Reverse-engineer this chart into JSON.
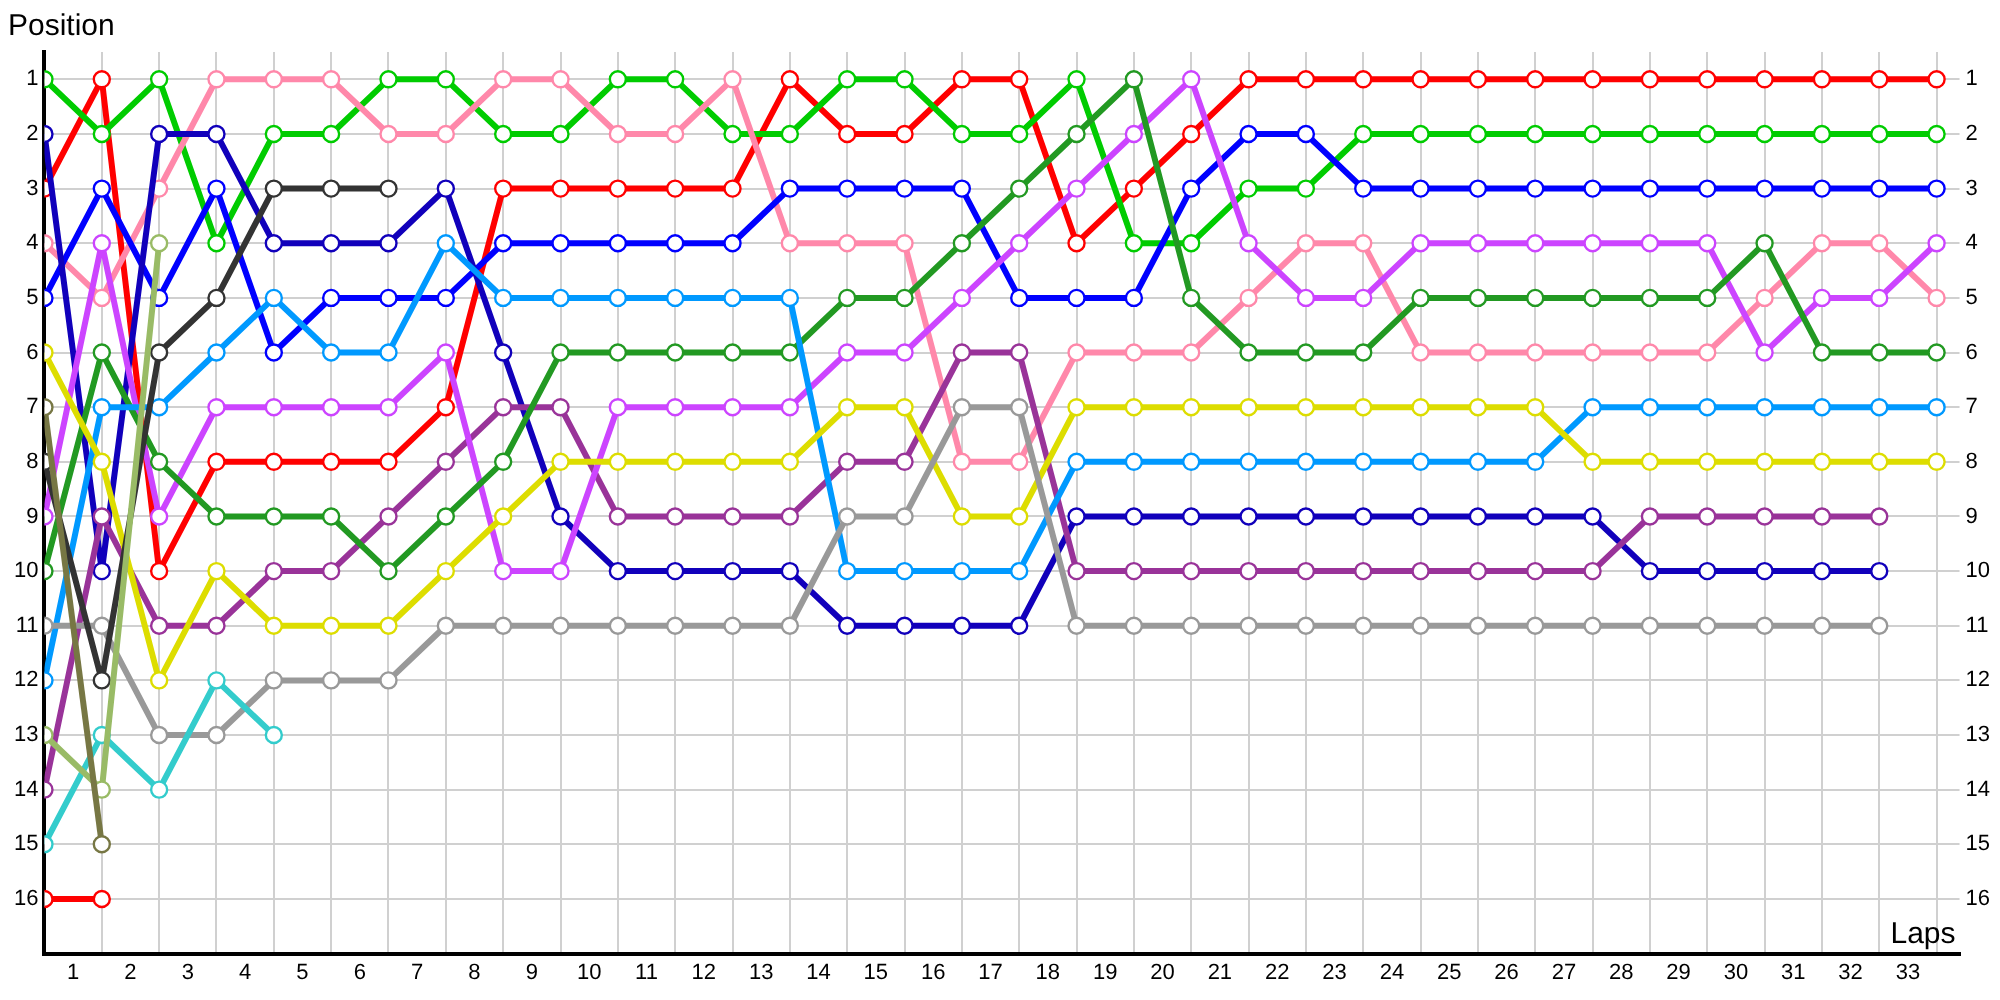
{
  "chart_data": {
    "type": "line",
    "xlabel": "Laps",
    "ylabel": "Position",
    "x": [
      0,
      1,
      2,
      3,
      4,
      5,
      6,
      7,
      8,
      9,
      10,
      11,
      12,
      13,
      14,
      15,
      16,
      17,
      18,
      19,
      20,
      21,
      22,
      23,
      24,
      25,
      26,
      27,
      28,
      29,
      30,
      31,
      32,
      33
    ],
    "xlim": [
      0,
      33.4
    ],
    "xticks": [
      {
        "value": 0,
        "label": null
      },
      {
        "value": 0.5,
        "label": "1"
      },
      {
        "value": 1,
        "label": null
      },
      {
        "value": 1.5,
        "label": "2"
      },
      {
        "value": 2,
        "label": null
      },
      {
        "value": 2.5,
        "label": "3"
      },
      {
        "value": 3,
        "label": null
      },
      {
        "value": 3.5,
        "label": "4"
      },
      {
        "value": 4,
        "label": null
      },
      {
        "value": 4.5,
        "label": "5"
      },
      {
        "value": 5,
        "label": null
      },
      {
        "value": 5.5,
        "label": "6"
      },
      {
        "value": 6,
        "label": null
      },
      {
        "value": 6.5,
        "label": "7"
      },
      {
        "value": 7,
        "label": null
      },
      {
        "value": 7.5,
        "label": "8"
      },
      {
        "value": 8,
        "label": null
      },
      {
        "value": 8.5,
        "label": "9"
      },
      {
        "value": 9,
        "label": null
      },
      {
        "value": 9.5,
        "label": "10"
      },
      {
        "value": 10,
        "label": null
      },
      {
        "value": 10.5,
        "label": "11"
      },
      {
        "value": 11,
        "label": null
      },
      {
        "value": 11.5,
        "label": "12"
      },
      {
        "value": 12,
        "label": null
      },
      {
        "value": 12.5,
        "label": "13"
      },
      {
        "value": 13,
        "label": null
      },
      {
        "value": 13.5,
        "label": "14"
      },
      {
        "value": 14,
        "label": null
      },
      {
        "value": 14.5,
        "label": "15"
      },
      {
        "value": 15,
        "label": null
      },
      {
        "value": 15.5,
        "label": "16"
      },
      {
        "value": 16,
        "label": null
      },
      {
        "value": 16.5,
        "label": "17"
      },
      {
        "value": 17,
        "label": null
      },
      {
        "value": 17.5,
        "label": "18"
      },
      {
        "value": 18,
        "label": null
      },
      {
        "value": 18.5,
        "label": "19"
      },
      {
        "value": 19,
        "label": null
      },
      {
        "value": 19.5,
        "label": "20"
      },
      {
        "value": 20,
        "label": null
      },
      {
        "value": 20.5,
        "label": "21"
      },
      {
        "value": 21,
        "label": null
      },
      {
        "value": 21.5,
        "label": "22"
      },
      {
        "value": 22,
        "label": null
      },
      {
        "value": 22.5,
        "label": "23"
      },
      {
        "value": 23,
        "label": null
      },
      {
        "value": 23.5,
        "label": "24"
      },
      {
        "value": 24,
        "label": null
      },
      {
        "value": 24.5,
        "label": "25"
      },
      {
        "value": 25,
        "label": null
      },
      {
        "value": 25.5,
        "label": "26"
      },
      {
        "value": 26,
        "label": null
      },
      {
        "value": 26.5,
        "label": "27"
      },
      {
        "value": 27,
        "label": null
      },
      {
        "value": 27.5,
        "label": "28"
      },
      {
        "value": 28,
        "label": null
      },
      {
        "value": 28.5,
        "label": "29"
      },
      {
        "value": 29,
        "label": null
      },
      {
        "value": 29.5,
        "label": "30"
      },
      {
        "value": 30,
        "label": null
      },
      {
        "value": 30.5,
        "label": "31"
      },
      {
        "value": 31,
        "label": null
      },
      {
        "value": 31.5,
        "label": "32"
      },
      {
        "value": 32,
        "label": null
      },
      {
        "value": 32.5,
        "label": "33"
      },
      {
        "value": 33,
        "label": null
      }
    ],
    "ylim": [
      17,
      0.5
    ],
    "yticks": [
      1,
      2,
      3,
      4,
      5,
      6,
      7,
      8,
      9,
      10,
      11,
      12,
      13,
      14,
      15,
      16
    ],
    "y2lim": [
      17,
      0.5
    ],
    "y2ticks": [
      1,
      2,
      3,
      4,
      5,
      6,
      7,
      8,
      9,
      10,
      11,
      12,
      13,
      14,
      15,
      16
    ],
    "grid": true,
    "legend": false,
    "marker": "circle",
    "line_style": "solid",
    "series": [
      {
        "color": "#ff0000",
        "values": [
          3,
          1,
          10,
          8,
          8,
          8,
          8,
          7,
          3,
          3,
          3,
          3,
          3,
          1,
          2,
          2,
          1,
          1,
          4,
          3,
          2,
          1,
          1,
          1,
          1,
          1,
          1,
          1,
          1,
          1,
          1,
          1,
          1,
          1
        ]
      },
      {
        "color": "#00cc00",
        "values": [
          1,
          2,
          1,
          4,
          2,
          2,
          1,
          1,
          2,
          2,
          1,
          1,
          2,
          2,
          1,
          1,
          2,
          2,
          1,
          4,
          4,
          3,
          3,
          2,
          2,
          2,
          2,
          2,
          2,
          2,
          2,
          2,
          2,
          2
        ]
      },
      {
        "color": "#ff88aa",
        "values": [
          4,
          5,
          3,
          1,
          1,
          1,
          2,
          2,
          1,
          1,
          2,
          2,
          1,
          4,
          4,
          4,
          8,
          8,
          6,
          6,
          6,
          5,
          4,
          4,
          6,
          6,
          6,
          6,
          6,
          6,
          5,
          4,
          4,
          5
        ]
      },
      {
        "color": "#0000ff",
        "values": [
          5,
          3,
          5,
          3,
          6,
          5,
          5,
          5,
          4,
          4,
          4,
          4,
          4,
          3,
          3,
          3,
          3,
          5,
          5,
          5,
          3,
          2,
          2,
          3,
          3,
          3,
          3,
          3,
          3,
          3,
          3,
          3,
          3,
          3
        ]
      },
      {
        "color": "#1100bb",
        "values": [
          2,
          10,
          2,
          2,
          4,
          4,
          4,
          3,
          6,
          9,
          10,
          10,
          10,
          10,
          11,
          11,
          11,
          11,
          9,
          9,
          9,
          9,
          9,
          9,
          9,
          9,
          9,
          9,
          10,
          10,
          10,
          10,
          10,
          null
        ]
      },
      {
        "color": "#993399",
        "values": [
          14,
          9,
          11,
          11,
          10,
          10,
          9,
          8,
          7,
          7,
          9,
          9,
          9,
          9,
          8,
          8,
          6,
          6,
          10,
          10,
          10,
          10,
          10,
          10,
          10,
          10,
          10,
          10,
          9,
          9,
          9,
          9,
          9,
          null
        ]
      },
      {
        "color": "#cc44ff",
        "values": [
          9,
          4,
          9,
          7,
          7,
          7,
          7,
          6,
          10,
          10,
          7,
          7,
          7,
          7,
          6,
          6,
          5,
          4,
          3,
          2,
          1,
          4,
          5,
          5,
          4,
          4,
          4,
          4,
          4,
          4,
          6,
          5,
          5,
          4
        ]
      },
      {
        "color": "#229922",
        "values": [
          10,
          6,
          8,
          9,
          9,
          9,
          10,
          9,
          8,
          6,
          6,
          6,
          6,
          6,
          5,
          5,
          4,
          3,
          2,
          1,
          5,
          6,
          6,
          6,
          5,
          5,
          5,
          5,
          5,
          5,
          4,
          6,
          6,
          6
        ]
      },
      {
        "color": "#0099ff",
        "values": [
          12,
          7,
          7,
          6,
          5,
          6,
          6,
          4,
          5,
          5,
          5,
          5,
          5,
          5,
          10,
          10,
          10,
          10,
          8,
          8,
          8,
          8,
          8,
          8,
          8,
          8,
          8,
          7,
          7,
          7,
          7,
          7,
          7,
          7
        ]
      },
      {
        "color": "#dddd00",
        "values": [
          6,
          8,
          12,
          10,
          11,
          11,
          11,
          10,
          9,
          8,
          8,
          8,
          8,
          8,
          7,
          7,
          9,
          9,
          7,
          7,
          7,
          7,
          7,
          7,
          7,
          7,
          7,
          8,
          8,
          8,
          8,
          8,
          8,
          8
        ]
      },
      {
        "color": "#999999",
        "values": [
          11,
          11,
          13,
          13,
          12,
          12,
          12,
          11,
          11,
          11,
          11,
          11,
          11,
          11,
          9,
          9,
          7,
          7,
          11,
          11,
          11,
          11,
          11,
          11,
          11,
          11,
          11,
          11,
          11,
          11,
          11,
          11,
          11,
          null
        ]
      },
      {
        "color": "#333333",
        "values": [
          8,
          12,
          6,
          5,
          3,
          3,
          3,
          null,
          null,
          null,
          null,
          null,
          null,
          null,
          null,
          null,
          null,
          null,
          null,
          null,
          null,
          null,
          null,
          null,
          null,
          null,
          null,
          null,
          null,
          null,
          null,
          null,
          null,
          null
        ]
      },
      {
        "color": "#33cccc",
        "values": [
          15,
          13,
          14,
          12,
          13,
          null,
          null,
          null,
          null,
          null,
          null,
          null,
          null,
          null,
          null,
          null,
          null,
          null,
          null,
          null,
          null,
          null,
          null,
          null,
          null,
          null,
          null,
          null,
          null,
          null,
          null,
          null,
          null,
          null
        ]
      },
      {
        "color": "#99bb66",
        "values": [
          13,
          14,
          4,
          null,
          null,
          null,
          null,
          null,
          null,
          null,
          null,
          null,
          null,
          null,
          null,
          null,
          null,
          null,
          null,
          null,
          null,
          null,
          null,
          null,
          null,
          null,
          null,
          null,
          null,
          null,
          null,
          null,
          null,
          null
        ]
      },
      {
        "color": "#777744",
        "values": [
          7,
          15,
          null,
          null,
          null,
          null,
          null,
          null,
          null,
          null,
          null,
          null,
          null,
          null,
          null,
          null,
          null,
          null,
          null,
          null,
          null,
          null,
          null,
          null,
          null,
          null,
          null,
          null,
          null,
          null,
          null,
          null,
          null,
          null
        ]
      },
      {
        "color": "#ff0000",
        "values": [
          16,
          16,
          null,
          null,
          null,
          null,
          null,
          null,
          null,
          null,
          null,
          null,
          null,
          null,
          null,
          null,
          null,
          null,
          null,
          null,
          null,
          null,
          null,
          null,
          null,
          null,
          null,
          null,
          null,
          null,
          null,
          null,
          null,
          null
        ]
      }
    ]
  }
}
